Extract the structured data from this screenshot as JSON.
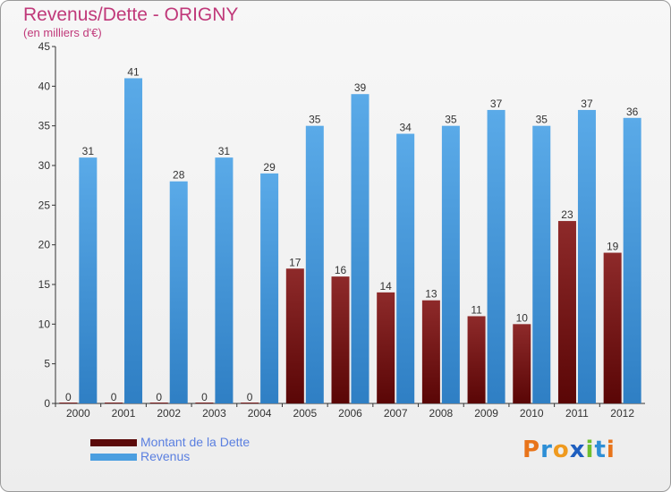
{
  "header": {
    "title": "Revenus/Dette - ORIGNY",
    "subtitle": "(en milliers d'€)"
  },
  "chart_data": {
    "type": "bar",
    "title": "Revenus/Dette - ORIGNY",
    "subtitle": "(en milliers d'€)",
    "xlabel": "",
    "ylabel": "",
    "ylim": [
      0,
      45
    ],
    "yticks": [
      0,
      5,
      10,
      15,
      20,
      25,
      30,
      35,
      40,
      45
    ],
    "grid": false,
    "legend_position": "bottom-left",
    "categories": [
      "2000",
      "2001",
      "2002",
      "2003",
      "2004",
      "2005",
      "2006",
      "2007",
      "2008",
      "2009",
      "2010",
      "2011",
      "2012"
    ],
    "series": [
      {
        "name": "Montant de la Dette",
        "color": "#7a1c1c",
        "values": [
          0,
          0,
          0,
          0,
          0,
          17,
          16,
          14,
          13,
          11,
          10,
          23,
          19
        ]
      },
      {
        "name": "Revenus",
        "color": "#4f9fe0",
        "values": [
          31,
          41,
          28,
          31,
          29,
          35,
          39,
          34,
          35,
          37,
          35,
          37,
          36
        ]
      }
    ]
  },
  "legend": {
    "items": [
      {
        "label": "Montant de la Dette",
        "color": "#5b0a0a"
      },
      {
        "label": "Revenus",
        "color": "#4a9ee0"
      }
    ]
  },
  "branding": {
    "logo_text": "Proxiti"
  }
}
